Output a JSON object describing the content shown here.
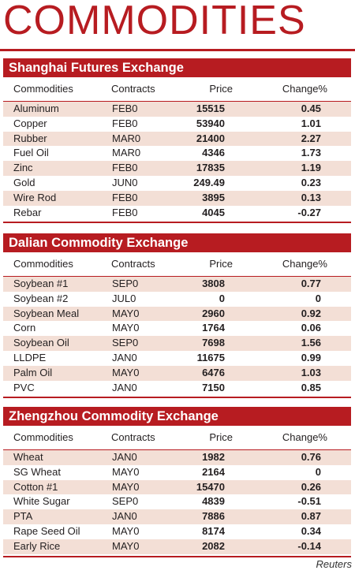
{
  "title": "COMMODITIES",
  "columns": {
    "commodities": "Commodities",
    "contracts": "Contracts",
    "price": "Price",
    "change": "Change%"
  },
  "sections": [
    {
      "name": "Shanghai Futures Exchange",
      "rows": [
        [
          "Aluminum",
          "FEB0",
          "15515",
          "0.45"
        ],
        [
          "Copper",
          "FEB0",
          "53940",
          "1.01"
        ],
        [
          "Rubber",
          "MAR0",
          "21400",
          "2.27"
        ],
        [
          "Fuel Oil",
          "MAR0",
          "4346",
          "1.73"
        ],
        [
          "Zinc",
          "FEB0",
          "17835",
          "1.19"
        ],
        [
          "Gold",
          "JUN0",
          "249.49",
          "0.23"
        ],
        [
          "Wire Rod",
          "FEB0",
          "3895",
          "0.13"
        ],
        [
          "Rebar",
          "FEB0",
          "4045",
          "-0.27"
        ]
      ]
    },
    {
      "name": "Dalian Commodity Exchange",
      "rows": [
        [
          "Soybean #1",
          "SEP0",
          "3808",
          "0.77"
        ],
        [
          "Soybean #2",
          "JUL0",
          "0",
          "0"
        ],
        [
          "Soybean Meal",
          "MAY0",
          "2960",
          "0.92"
        ],
        [
          "Corn",
          "MAY0",
          "1764",
          "0.06"
        ],
        [
          "Soybean Oil",
          "SEP0",
          "7698",
          "1.56"
        ],
        [
          "LLDPE",
          "JAN0",
          "11675",
          "0.99"
        ],
        [
          "Palm Oil",
          "MAY0",
          "6476",
          "1.03"
        ],
        [
          "PVC",
          "JAN0",
          "7150",
          "0.85"
        ]
      ]
    },
    {
      "name": "Zhengzhou Commodity Exchange",
      "rows": [
        [
          "Wheat",
          "JAN0",
          "1982",
          "0.76"
        ],
        [
          "SG Wheat",
          "MAY0",
          "2164",
          "0"
        ],
        [
          "Cotton #1",
          "MAY0",
          "15470",
          "0.26"
        ],
        [
          "White Sugar",
          "SEP0",
          "4839",
          "-0.51"
        ],
        [
          "PTA",
          "JAN0",
          "7886",
          "0.87"
        ],
        [
          "Rape Seed Oil",
          "MAY0",
          "8174",
          "0.34"
        ],
        [
          "Early Rice",
          "MAY0",
          "2082",
          "-0.14"
        ]
      ]
    }
  ],
  "source": "Reuters",
  "colors": {
    "accent": "#b71c21",
    "row_alt": "#f3dfd6"
  }
}
